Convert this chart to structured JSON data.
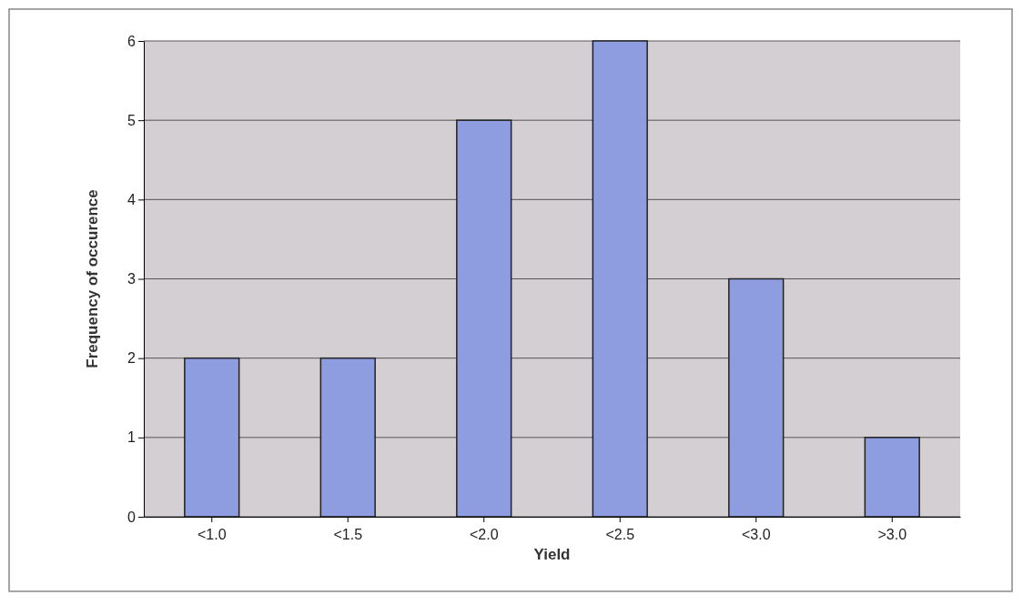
{
  "chart_data": {
    "type": "bar",
    "xlabel": "Yield",
    "ylabel": "Frequency of occurence",
    "categories": [
      "<1.0",
      "<1.5",
      "<2.0",
      "<2.5",
      "<3.0",
      ">3.0"
    ],
    "values": [
      2,
      2,
      5,
      6,
      3,
      1
    ],
    "color": "#8e9de0",
    "ylim": [
      0,
      6
    ],
    "yticks": [
      0,
      1,
      2,
      3,
      4,
      5,
      6
    ],
    "grid": "y"
  }
}
